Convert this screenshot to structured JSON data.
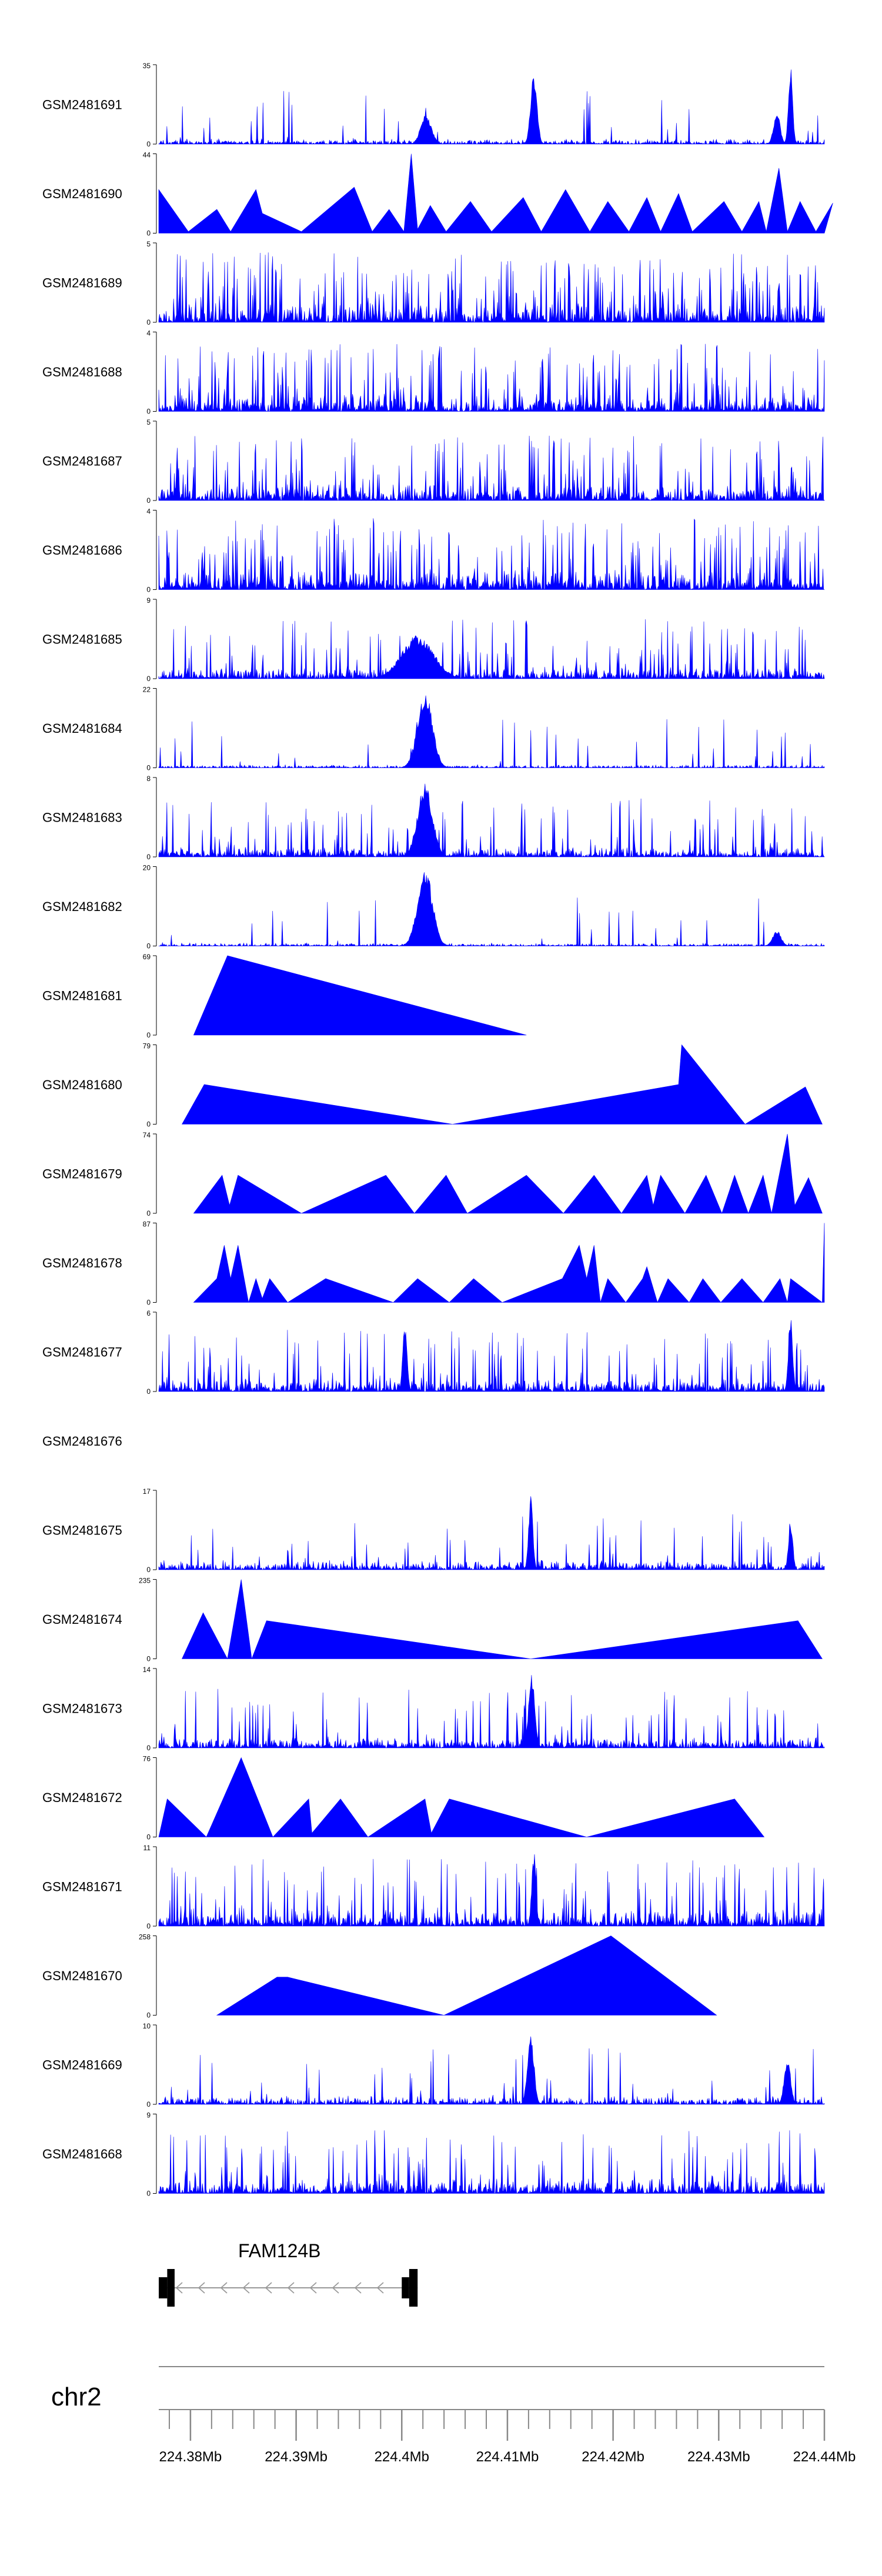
{
  "chart_data": {
    "type": "area",
    "title": "",
    "chromosome": "chr2",
    "x_range": [
      224.377,
      224.44
    ],
    "x_unit": "Mb",
    "axis": {
      "major_ticks": [
        224.38,
        224.39,
        224.4,
        224.41,
        224.42,
        224.43,
        224.44
      ],
      "major_labels": [
        "224.38Mb",
        "224.39Mb",
        "224.4Mb",
        "224.41Mb",
        "224.42Mb",
        "224.43Mb",
        "224.44Mb"
      ],
      "minor_step": 0.002
    },
    "gene": {
      "name": "FAM124B",
      "strand": "-",
      "start": 224.377,
      "end": 224.4015,
      "exons": [
        [
          224.377,
          224.3778,
          "small"
        ],
        [
          224.3778,
          224.3785,
          "big"
        ],
        [
          224.4,
          224.4007,
          "small"
        ],
        [
          224.4007,
          224.4015,
          "big"
        ]
      ]
    },
    "tracks": [
      {
        "name": "GSM2481691",
        "ymax": 35,
        "kind": "dense",
        "seed": 11,
        "base": 0.07,
        "spikeProb": 0.03,
        "peaks": [
          [
            224.4023,
            0.38,
            0.0005
          ],
          [
            224.4125,
            0.9,
            0.0003
          ],
          [
            224.4355,
            0.42,
            0.0003
          ],
          [
            224.4368,
            1.0,
            0.0002
          ]
        ]
      },
      {
        "name": "GSM2481690",
        "ymax": 44,
        "kind": "poly",
        "pts": [
          [
            224.377,
            0.55
          ],
          [
            224.3798,
            0.02
          ],
          [
            224.3825,
            0.3
          ],
          [
            224.3838,
            0.02
          ],
          [
            224.3862,
            0.55
          ],
          [
            224.3868,
            0.25
          ],
          [
            224.3905,
            0.02
          ],
          [
            224.3955,
            0.58
          ],
          [
            224.3972,
            0.02
          ],
          [
            224.3988,
            0.3
          ],
          [
            224.4002,
            0.02
          ],
          [
            224.4009,
            1.0
          ],
          [
            224.4015,
            0.05
          ],
          [
            224.4027,
            0.35
          ],
          [
            224.4042,
            0.02
          ],
          [
            224.4065,
            0.4
          ],
          [
            224.4085,
            0.02
          ],
          [
            224.4115,
            0.45
          ],
          [
            224.4132,
            0.02
          ],
          [
            224.4155,
            0.55
          ],
          [
            224.4178,
            0.02
          ],
          [
            224.4195,
            0.4
          ],
          [
            224.4215,
            0.02
          ],
          [
            224.4232,
            0.45
          ],
          [
            224.4245,
            0.02
          ],
          [
            224.4262,
            0.5
          ],
          [
            224.4275,
            0.02
          ],
          [
            224.4305,
            0.4
          ],
          [
            224.4322,
            0.02
          ],
          [
            224.4338,
            0.4
          ],
          [
            224.4345,
            0.02
          ],
          [
            224.4357,
            0.82
          ],
          [
            224.4365,
            0.02
          ],
          [
            224.4377,
            0.4
          ],
          [
            224.4392,
            0.02
          ],
          [
            224.4408,
            0.38
          ],
          [
            224.44,
            0.0
          ]
        ]
      },
      {
        "name": "GSM2481689",
        "ymax": 5,
        "kind": "dense",
        "seed": 23,
        "base": 0.28,
        "spikeProb": 0.17,
        "peaks": []
      },
      {
        "name": "GSM2481688",
        "ymax": 4,
        "kind": "dense",
        "seed": 37,
        "base": 0.25,
        "spikeProb": 0.16,
        "peaks": []
      },
      {
        "name": "GSM2481687",
        "ymax": 5,
        "kind": "dense",
        "seed": 41,
        "base": 0.22,
        "spikeProb": 0.14,
        "peaks": []
      },
      {
        "name": "GSM2481686",
        "ymax": 4,
        "kind": "dense",
        "seed": 53,
        "base": 0.3,
        "spikeProb": 0.16,
        "peaks": []
      },
      {
        "name": "GSM2481685",
        "ymax": 9,
        "kind": "dense",
        "seed": 61,
        "base": 0.15,
        "spikeProb": 0.12,
        "peaks": [
          [
            224.4015,
            0.55,
            0.0015
          ]
        ]
      },
      {
        "name": "GSM2481684",
        "ymax": 22,
        "kind": "dense",
        "seed": 71,
        "base": 0.04,
        "spikeProb": 0.03,
        "peaks": [
          [
            224.4022,
            1.0,
            0.0007
          ]
        ]
      },
      {
        "name": "GSM2481683",
        "ymax": 8,
        "kind": "dense",
        "seed": 83,
        "base": 0.14,
        "spikeProb": 0.1,
        "peaks": [
          [
            224.4022,
            0.95,
            0.0007
          ]
        ]
      },
      {
        "name": "GSM2481682",
        "ymax": 20,
        "kind": "dense",
        "seed": 97,
        "base": 0.04,
        "spikeProb": 0.03,
        "peaks": [
          [
            224.4022,
            1.0,
            0.0007
          ],
          [
            224.4355,
            0.2,
            0.0004
          ]
        ]
      },
      {
        "name": "GSM2481681",
        "ymax": 69,
        "kind": "poly",
        "pts": [
          [
            224.3803,
            0.0
          ],
          [
            224.3835,
            1.0
          ],
          [
            224.4118,
            0.0
          ]
        ]
      },
      {
        "name": "GSM2481680",
        "ymax": 79,
        "kind": "poly",
        "pts": [
          [
            224.3792,
            0.0
          ],
          [
            224.3813,
            0.5
          ],
          [
            224.4048,
            0.0
          ],
          [
            224.4262,
            0.5
          ],
          [
            224.4265,
            1.0
          ],
          [
            224.4325,
            0.0
          ],
          [
            224.4382,
            0.47
          ],
          [
            224.4398,
            0.0
          ]
        ]
      },
      {
        "name": "GSM2481679",
        "ymax": 74,
        "kind": "poly",
        "pts": [
          [
            224.3803,
            0.0
          ],
          [
            224.383,
            0.48
          ],
          [
            224.3837,
            0.1
          ],
          [
            224.3845,
            0.48
          ],
          [
            224.3905,
            0.0
          ],
          [
            224.3985,
            0.48
          ],
          [
            224.4012,
            0.0
          ],
          [
            224.4042,
            0.48
          ],
          [
            224.4062,
            0.0
          ],
          [
            224.4118,
            0.48
          ],
          [
            224.4153,
            0.0
          ],
          [
            224.4182,
            0.48
          ],
          [
            224.4208,
            0.0
          ],
          [
            224.4232,
            0.48
          ],
          [
            224.4238,
            0.1
          ],
          [
            224.4245,
            0.48
          ],
          [
            224.4268,
            0.0
          ],
          [
            224.4288,
            0.48
          ],
          [
            224.4303,
            0.0
          ],
          [
            224.4315,
            0.48
          ],
          [
            224.4328,
            0.0
          ],
          [
            224.4342,
            0.48
          ],
          [
            224.435,
            0.0
          ],
          [
            224.4365,
            1.0
          ],
          [
            224.4372,
            0.1
          ],
          [
            224.4385,
            0.45
          ],
          [
            224.4398,
            0.0
          ]
        ]
      },
      {
        "name": "GSM2481678",
        "ymax": 87,
        "kind": "poly",
        "pts": [
          [
            224.3803,
            0.0
          ],
          [
            224.3825,
            0.3
          ],
          [
            224.3832,
            0.72
          ],
          [
            224.3838,
            0.3
          ],
          [
            224.3845,
            0.72
          ],
          [
            224.3855,
            0.0
          ],
          [
            224.3862,
            0.3
          ],
          [
            224.3868,
            0.05
          ],
          [
            224.3875,
            0.3
          ],
          [
            224.3892,
            0.0
          ],
          [
            224.3928,
            0.3
          ],
          [
            224.3992,
            0.0
          ],
          [
            224.4015,
            0.3
          ],
          [
            224.4045,
            0.0
          ],
          [
            224.4068,
            0.3
          ],
          [
            224.4095,
            0.0
          ],
          [
            224.4152,
            0.3
          ],
          [
            224.4168,
            0.72
          ],
          [
            224.4175,
            0.3
          ],
          [
            224.4182,
            0.72
          ],
          [
            224.4188,
            0.0
          ],
          [
            224.4195,
            0.3
          ],
          [
            224.4212,
            0.0
          ],
          [
            224.4228,
            0.3
          ],
          [
            224.4232,
            0.45
          ],
          [
            224.4242,
            0.0
          ],
          [
            224.4252,
            0.3
          ],
          [
            224.4272,
            0.0
          ],
          [
            224.4285,
            0.3
          ],
          [
            224.4302,
            0.0
          ],
          [
            224.4322,
            0.3
          ],
          [
            224.4342,
            0.0
          ],
          [
            224.4358,
            0.3
          ],
          [
            224.4365,
            0.0
          ],
          [
            224.4368,
            0.3
          ],
          [
            224.4398,
            0.0
          ],
          [
            224.44,
            1.0
          ]
        ]
      },
      {
        "name": "GSM2481677",
        "ymax": 6,
        "kind": "dense",
        "seed": 131,
        "base": 0.18,
        "spikeProb": 0.1,
        "peaks": [
          [
            224.4003,
            0.9,
            0.0002
          ],
          [
            224.4368,
            0.95,
            0.0002
          ]
        ]
      },
      {
        "name": "GSM2481676",
        "ymax": null,
        "kind": "empty"
      },
      {
        "name": "GSM2481675",
        "ymax": 17,
        "kind": "dense",
        "seed": 151,
        "base": 0.13,
        "spikeProb": 0.05,
        "peaks": [
          [
            224.4122,
            0.95,
            0.0002
          ],
          [
            224.4368,
            0.65,
            0.0002
          ]
        ]
      },
      {
        "name": "GSM2481674",
        "ymax": 235,
        "kind": "poly",
        "pts": [
          [
            224.3792,
            0.0
          ],
          [
            224.3812,
            0.58
          ],
          [
            224.3835,
            0.0
          ],
          [
            224.3848,
            1.0
          ],
          [
            224.3858,
            0.0
          ],
          [
            224.3872,
            0.48
          ],
          [
            224.4122,
            0.0
          ],
          [
            224.4375,
            0.48
          ],
          [
            224.4398,
            0.0
          ]
        ]
      },
      {
        "name": "GSM2481673",
        "ymax": 14,
        "kind": "dense",
        "seed": 173,
        "base": 0.15,
        "spikeProb": 0.08,
        "peaks": [
          [
            224.4123,
            0.95,
            0.0003
          ]
        ]
      },
      {
        "name": "GSM2481672",
        "ymax": 76,
        "kind": "poly",
        "pts": [
          [
            224.377,
            0.0
          ],
          [
            224.3778,
            0.48
          ],
          [
            224.3815,
            0.0
          ],
          [
            224.3848,
            1.0
          ],
          [
            224.3878,
            0.0
          ],
          [
            224.3912,
            0.48
          ],
          [
            224.3915,
            0.05
          ],
          [
            224.3942,
            0.48
          ],
          [
            224.3968,
            0.0
          ],
          [
            224.4022,
            0.48
          ],
          [
            224.4028,
            0.05
          ],
          [
            224.4045,
            0.48
          ],
          [
            224.4175,
            0.0
          ],
          [
            224.4315,
            0.48
          ],
          [
            224.4343,
            0.0
          ]
        ]
      },
      {
        "name": "GSM2481671",
        "ymax": 11,
        "kind": "dense",
        "seed": 191,
        "base": 0.25,
        "spikeProb": 0.09,
        "peaks": [
          [
            224.4125,
            0.95,
            0.0002
          ]
        ]
      },
      {
        "name": "GSM2481670",
        "ymax": 258,
        "kind": "poly",
        "pts": [
          [
            224.3825,
            0.0
          ],
          [
            224.3882,
            0.48
          ],
          [
            224.3892,
            0.48
          ],
          [
            224.404,
            0.0
          ],
          [
            224.4198,
            1.0
          ],
          [
            224.4298,
            0.0
          ]
        ]
      },
      {
        "name": "GSM2481669",
        "ymax": 10,
        "kind": "dense",
        "seed": 211,
        "base": 0.11,
        "spikeProb": 0.05,
        "peaks": [
          [
            224.4122,
            0.95,
            0.0003
          ],
          [
            224.4365,
            0.6,
            0.0003
          ]
        ]
      },
      {
        "name": "GSM2481668",
        "ymax": 9,
        "kind": "dense",
        "seed": 223,
        "base": 0.2,
        "spikeProb": 0.1,
        "peaks": []
      }
    ]
  },
  "colors": {
    "area": "#0000ff",
    "text": "#000000",
    "axis": "#888888"
  }
}
